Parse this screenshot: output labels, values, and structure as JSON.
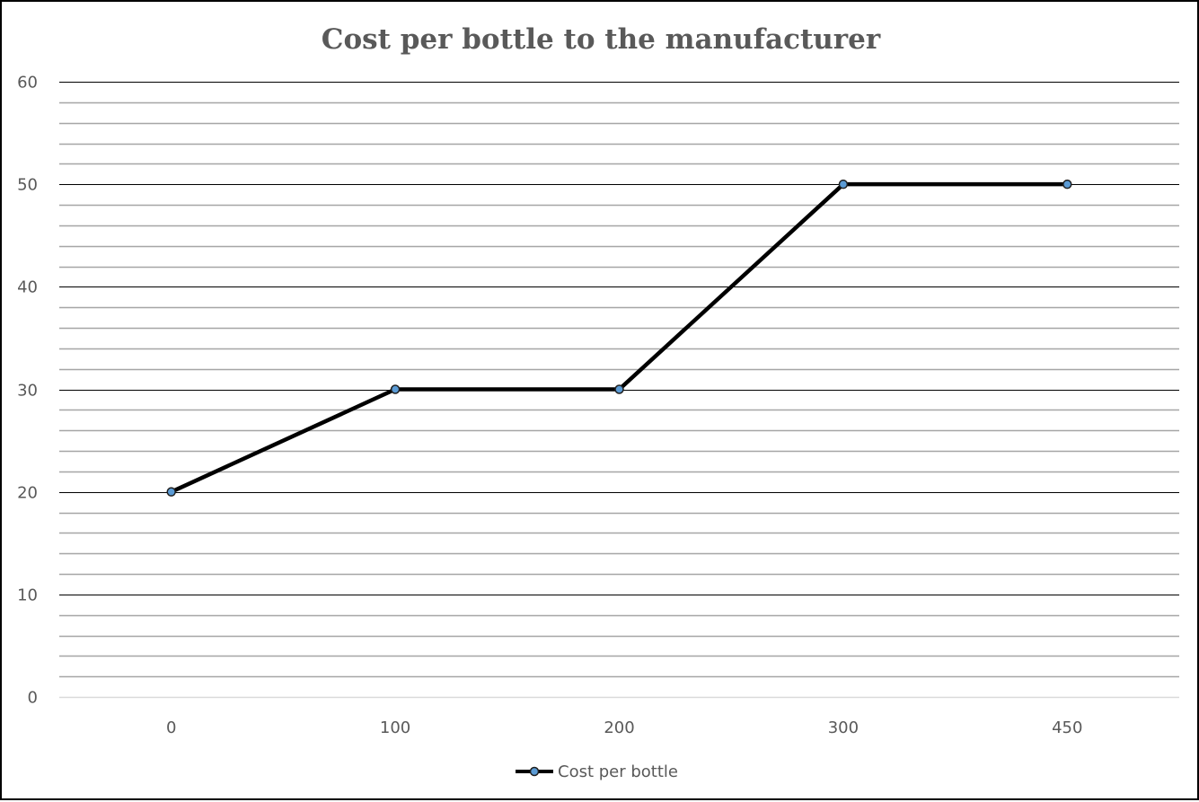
{
  "chart_data": {
    "type": "line",
    "title": "Cost per bottle to the manufacturer",
    "xlabel": "",
    "ylabel": "",
    "categories": [
      "0",
      "100",
      "200",
      "300",
      "450"
    ],
    "series": [
      {
        "name": "Cost per bottle",
        "values": [
          20,
          30,
          30,
          50,
          50
        ]
      }
    ],
    "ylim": [
      0,
      60
    ],
    "yticks": [
      0,
      10,
      20,
      30,
      40,
      50,
      60
    ],
    "ytick_labels": [
      "0",
      "10",
      "20",
      "30",
      "40",
      "50",
      "60"
    ],
    "y_minor_step": 2,
    "grid": true,
    "legend": "bottom",
    "colors": {
      "line": "#000000",
      "marker_fill": "#5B9BD5",
      "marker_stroke": "#1F1F1F",
      "major_grid": "#000000",
      "minor_grid": "#A6A6A6",
      "axis": "#D9D9D9",
      "text": "#595959"
    }
  }
}
